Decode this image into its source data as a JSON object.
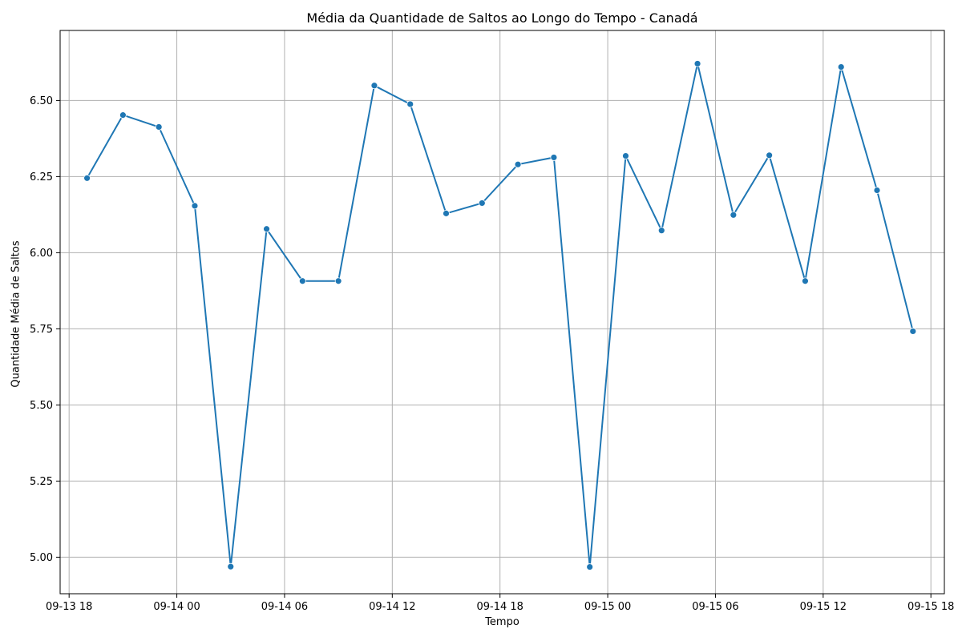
{
  "chart_data": {
    "type": "line",
    "title": "Média da Quantidade de Saltos ao Longo do Tempo - Canadá",
    "xlabel": "Tempo",
    "ylabel": "Quantidade Média de Saltos",
    "grid": true,
    "legend": "none",
    "xlim": [
      "2023-09-13 17:30",
      "2023-09-15 18:45"
    ],
    "ylim": [
      4.88,
      6.73
    ],
    "x_ticks": [
      "09-13 18",
      "09-14 00",
      "09-14 06",
      "09-14 12",
      "09-14 18",
      "09-15 00",
      "09-15 06",
      "09-15 12",
      "09-15 18"
    ],
    "y_ticks": [
      "5.00",
      "5.25",
      "5.50",
      "5.75",
      "6.00",
      "6.25",
      "6.50"
    ],
    "series": [
      {
        "color": "#1f77b4",
        "x": [
          "2023-09-13 19:00",
          "2023-09-13 21:00",
          "2023-09-13 23:00",
          "2023-09-14 01:00",
          "2023-09-14 03:00",
          "2023-09-14 05:00",
          "2023-09-14 07:00",
          "2023-09-14 09:00",
          "2023-09-14 11:00",
          "2023-09-14 13:00",
          "2023-09-14 15:00",
          "2023-09-14 17:00",
          "2023-09-14 19:00",
          "2023-09-14 21:00",
          "2023-09-14 23:00",
          "2023-09-15 01:00",
          "2023-09-15 03:00",
          "2023-09-15 05:00",
          "2023-09-15 07:00",
          "2023-09-15 09:00",
          "2023-09-15 11:00",
          "2023-09-15 13:00",
          "2023-09-15 15:00",
          "2023-09-15 17:00"
        ],
        "y": [
          6.245,
          6.452,
          6.413,
          6.154,
          4.969,
          6.078,
          5.907,
          5.907,
          6.549,
          6.488,
          6.129,
          6.163,
          6.29,
          6.313,
          4.968,
          6.318,
          6.073,
          6.621,
          6.124,
          6.32,
          5.907,
          6.61,
          6.205,
          5.742
        ]
      }
    ]
  }
}
